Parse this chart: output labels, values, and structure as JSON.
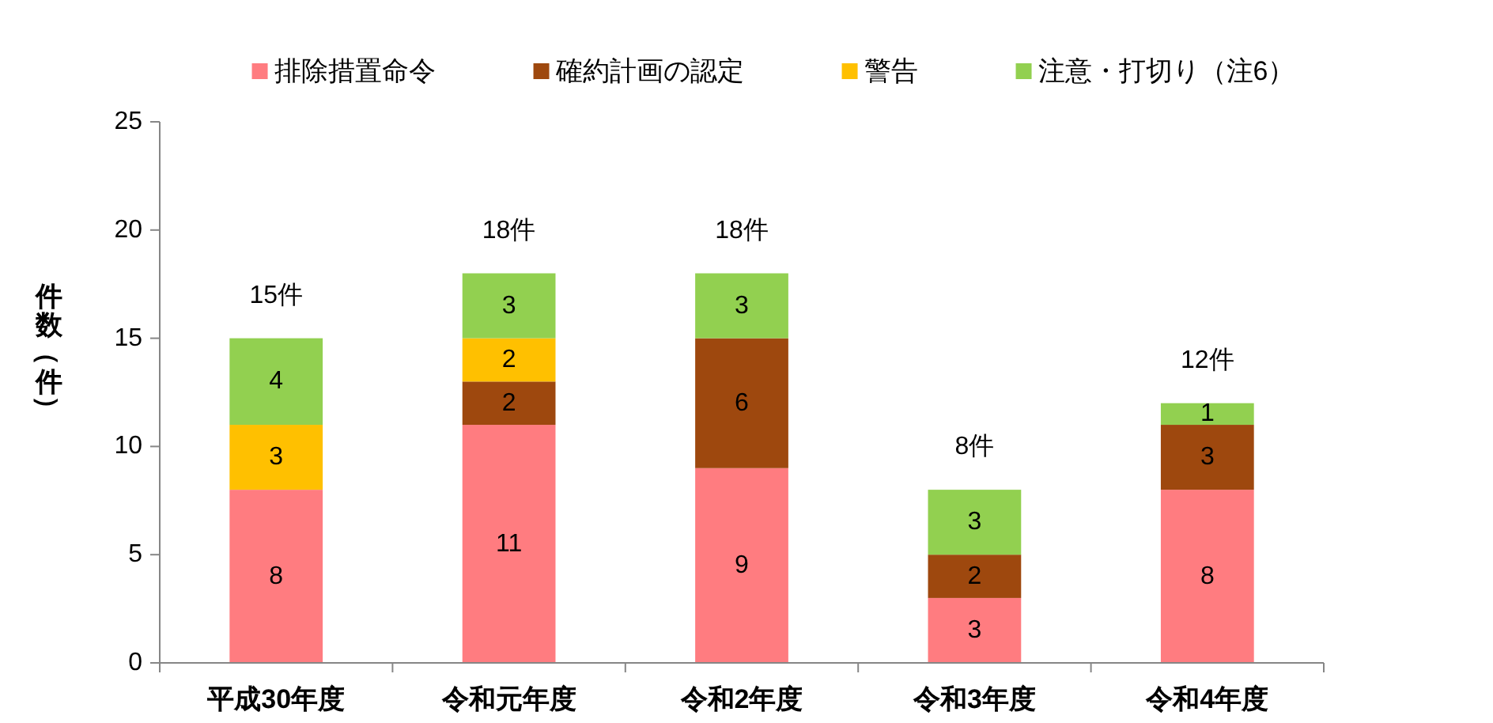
{
  "chart_data": {
    "type": "bar",
    "stacked": true,
    "ylabel": "件数（件）",
    "legend": "top",
    "categories": [
      "平成30年度",
      "令和元年度",
      "令和2年度",
      "令和3年度",
      "令和4年度"
    ],
    "series": [
      {
        "name": "排除措置命令",
        "color": "#ff7c80",
        "values": [
          8,
          11,
          9,
          3,
          8
        ],
        "value_labels": [
          "8",
          "11",
          "9",
          "3",
          "8"
        ]
      },
      {
        "name": "確約計画の認定",
        "color": "#9e480e",
        "values": [
          0,
          2,
          6,
          2,
          3
        ],
        "value_labels": [
          null,
          "2",
          "6",
          "2",
          "3"
        ]
      },
      {
        "name": "警告",
        "color": "#ffc000",
        "values": [
          3,
          2,
          0,
          0,
          0
        ],
        "value_labels": [
          "3",
          "2",
          null,
          null,
          null
        ]
      },
      {
        "name": "注意・打切り（注6）",
        "color": "#92d050",
        "values": [
          4,
          3,
          3,
          3,
          1
        ],
        "value_labels": [
          "4",
          "3",
          "3",
          "3",
          "1"
        ]
      }
    ],
    "totals": [
      "15件",
      "18件",
      "18件",
      "8件",
      "12件"
    ],
    "ylim": [
      0,
      25
    ],
    "yticks": [
      0,
      5,
      10,
      15,
      20,
      25
    ]
  }
}
